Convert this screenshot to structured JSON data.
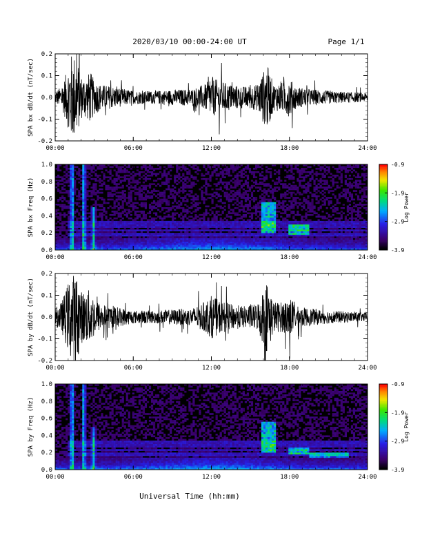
{
  "header": {
    "title": "2020/03/10  00:00-24:00 UT",
    "page": "Page 1/1"
  },
  "footer": {
    "xlabel": "Universal Time (hh:mm)"
  },
  "colors": {
    "background": "#ffffff",
    "trace": "#000000",
    "spectrogram_bg": "#000000"
  },
  "chart_data": [
    {
      "type": "line",
      "ylabel": "SPA bx dB/dt (nT/sec)",
      "xlim": [
        0,
        24
      ],
      "ylim": [
        -0.2,
        0.2
      ],
      "xticks": [
        "00:00",
        "06:00",
        "12:00",
        "18:00",
        "24:00"
      ],
      "yticks": [
        "-0.2",
        "-0.1",
        "0.0",
        "0.1",
        "0.2"
      ],
      "x": [
        0.0,
        0.5,
        0.9,
        1.2,
        1.5,
        1.8,
        2.0,
        2.4,
        2.7,
        3.0,
        3.5,
        4.5,
        6.0,
        7.5,
        9.0,
        10.5,
        11.5,
        12.0,
        12.5,
        13.5,
        14.5,
        15.5,
        16.0,
        16.3,
        16.8,
        17.5,
        18.0,
        18.5,
        19.5,
        21.0,
        22.5,
        24.0
      ],
      "amplitude": [
        0.03,
        0.05,
        0.12,
        0.2,
        0.2,
        0.15,
        0.1,
        0.1,
        0.12,
        0.08,
        0.06,
        0.05,
        0.03,
        0.03,
        0.035,
        0.04,
        0.06,
        0.09,
        0.08,
        0.06,
        0.05,
        0.06,
        0.12,
        0.15,
        0.06,
        0.07,
        0.09,
        0.05,
        0.04,
        0.03,
        0.025,
        0.02
      ]
    },
    {
      "type": "heatmap",
      "ylabel": "SPA bx Freq (Hz)",
      "xlim": [
        0,
        24
      ],
      "ylim": [
        0,
        1.0
      ],
      "xticks": [
        "00:00",
        "06:00",
        "12:00",
        "18:00",
        "24:00"
      ],
      "yticks": [
        "0.0",
        "0.2",
        "0.4",
        "0.6",
        "0.8",
        "1.0"
      ],
      "colorbar": {
        "label": "Log Power",
        "min": -3.9,
        "max": -0.9,
        "ticks": [
          "-0.9",
          "-1.9",
          "-2.9",
          "-3.9"
        ]
      },
      "vertical_bursts": [
        {
          "t": 1.3,
          "fmax": 1.0,
          "level": 0.55
        },
        {
          "t": 2.2,
          "fmax": 1.0,
          "level": 0.5
        },
        {
          "t": 2.95,
          "fmax": 0.5,
          "level": 0.45
        }
      ],
      "blobs": [
        {
          "t0": 15.9,
          "t1": 17.0,
          "f0": 0.2,
          "f1": 0.55,
          "level": 0.5
        },
        {
          "t0": 18.0,
          "t1": 19.5,
          "f0": 0.18,
          "f1": 0.3,
          "level": 0.45
        }
      ],
      "bands": [
        0.18,
        0.23,
        0.28,
        0.32
      ]
    },
    {
      "type": "line",
      "ylabel": "SPA by dB/dt (nT/sec)",
      "xlim": [
        0,
        24
      ],
      "ylim": [
        -0.2,
        0.2
      ],
      "xticks": [
        "00:00",
        "06:00",
        "12:00",
        "18:00",
        "24:00"
      ],
      "yticks": [
        "-0.2",
        "-0.1",
        "0.0",
        "0.1",
        "0.2"
      ],
      "x": [
        0.0,
        0.5,
        0.9,
        1.2,
        1.5,
        1.8,
        2.0,
        2.4,
        2.7,
        3.0,
        3.5,
        4.5,
        6.0,
        7.5,
        9.0,
        10.5,
        11.5,
        12.0,
        12.5,
        13.5,
        14.5,
        15.5,
        16.0,
        16.3,
        16.8,
        17.5,
        18.0,
        18.5,
        19.5,
        21.0,
        22.5,
        24.0
      ],
      "amplitude": [
        0.04,
        0.07,
        0.14,
        0.2,
        0.2,
        0.17,
        0.12,
        0.12,
        0.13,
        0.09,
        0.06,
        0.05,
        0.03,
        0.03,
        0.035,
        0.04,
        0.07,
        0.1,
        0.08,
        0.06,
        0.05,
        0.06,
        0.13,
        0.17,
        0.07,
        0.07,
        0.1,
        0.05,
        0.04,
        0.03,
        0.025,
        0.02
      ]
    },
    {
      "type": "heatmap",
      "ylabel": "SPA by Freq (Hz)",
      "xlim": [
        0,
        24
      ],
      "ylim": [
        0,
        1.0
      ],
      "xticks": [
        "00:00",
        "06:00",
        "12:00",
        "18:00",
        "24:00"
      ],
      "yticks": [
        "0.0",
        "0.2",
        "0.4",
        "0.6",
        "0.8",
        "1.0"
      ],
      "colorbar": {
        "label": "Log Power",
        "min": -3.9,
        "max": -0.9,
        "ticks": [
          "-0.9",
          "-1.9",
          "-2.9",
          "-3.9"
        ]
      },
      "vertical_bursts": [
        {
          "t": 1.3,
          "fmax": 1.0,
          "level": 0.55
        },
        {
          "t": 2.2,
          "fmax": 1.0,
          "level": 0.5
        },
        {
          "t": 2.95,
          "fmax": 0.5,
          "level": 0.45
        }
      ],
      "blobs": [
        {
          "t0": 15.9,
          "t1": 17.0,
          "f0": 0.2,
          "f1": 0.55,
          "level": 0.5
        },
        {
          "t0": 18.0,
          "t1": 19.5,
          "f0": 0.18,
          "f1": 0.25,
          "level": 0.45
        },
        {
          "t0": 19.5,
          "t1": 22.5,
          "f0": 0.15,
          "f1": 0.2,
          "level": 0.35
        }
      ],
      "bands": [
        0.18,
        0.23,
        0.28,
        0.32
      ]
    }
  ]
}
